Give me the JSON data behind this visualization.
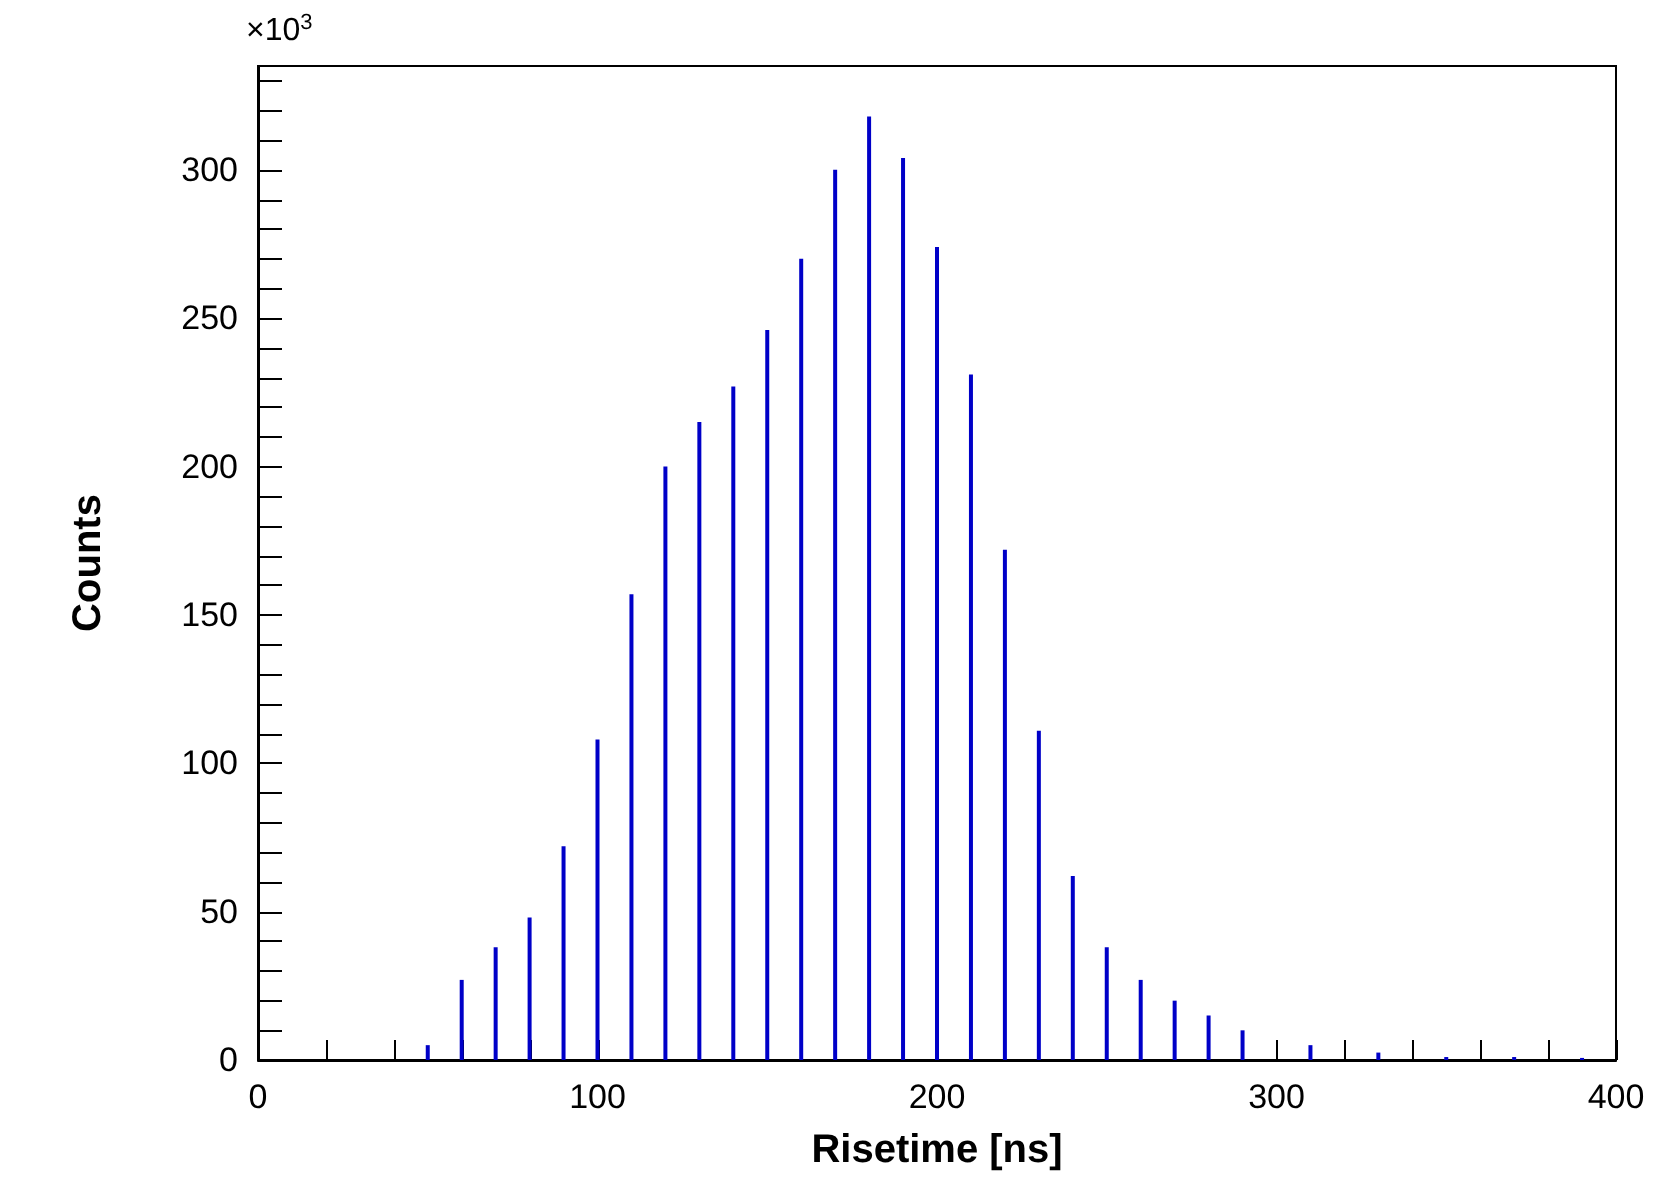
{
  "chart_data": {
    "type": "bar",
    "xlabel": "Risetime [ns]",
    "ylabel": "Counts",
    "annotations": [
      "×10$^{3}$"
    ],
    "x": [
      50,
      60,
      70,
      80,
      90,
      100,
      110,
      120,
      130,
      140,
      150,
      160,
      170,
      180,
      190,
      200,
      210,
      220,
      230,
      240,
      250,
      260,
      270,
      280,
      290,
      310,
      330,
      350,
      370,
      390
    ],
    "values": [
      5,
      27,
      38,
      48,
      72,
      108,
      157,
      200,
      215,
      227,
      246,
      270,
      300,
      318,
      304,
      274,
      231,
      172,
      111,
      62,
      38,
      27,
      20,
      15,
      10,
      5,
      2.5,
      1,
      1,
      0.7
    ],
    "color": "#0000c8",
    "xlim": [
      0,
      400
    ],
    "xticks": [
      0,
      {
        "value": 20,
        "label": null
      },
      {
        "value": 40,
        "label": null
      },
      {
        "value": 60,
        "label": null
      },
      {
        "value": 80,
        "label": null
      },
      100,
      {
        "value": 120,
        "label": null
      },
      {
        "value": 140,
        "label": null
      },
      {
        "value": 160,
        "label": null
      },
      {
        "value": 180,
        "label": null
      },
      200,
      {
        "value": 220,
        "label": null
      },
      {
        "value": 240,
        "label": null
      },
      {
        "value": 260,
        "label": null
      },
      {
        "value": 280,
        "label": null
      },
      300,
      {
        "value": 320,
        "label": null
      },
      {
        "value": 340,
        "label": null
      },
      {
        "value": 360,
        "label": null
      },
      {
        "value": 380,
        "label": null
      },
      400
    ],
    "ylim": [
      0,
      335
    ],
    "yticks": [
      0,
      {
        "value": 10,
        "label": null
      },
      {
        "value": 20,
        "label": null
      },
      {
        "value": 30,
        "label": null
      },
      {
        "value": 40,
        "label": null
      },
      50,
      {
        "value": 60,
        "label": null
      },
      {
        "value": 70,
        "label": null
      },
      {
        "value": 80,
        "label": null
      },
      {
        "value": 90,
        "label": null
      },
      100,
      {
        "value": 110,
        "label": null
      },
      {
        "value": 120,
        "label": null
      },
      {
        "value": 130,
        "label": null
      },
      {
        "value": 140,
        "label": null
      },
      150,
      {
        "value": 160,
        "label": null
      },
      {
        "value": 170,
        "label": null
      },
      {
        "value": 180,
        "label": null
      },
      {
        "value": 190,
        "label": null
      },
      200,
      {
        "value": 210,
        "label": null
      },
      {
        "value": 220,
        "label": null
      },
      {
        "value": 230,
        "label": null
      },
      {
        "value": 240,
        "label": null
      },
      250,
      {
        "value": 260,
        "label": null
      },
      {
        "value": 270,
        "label": null
      },
      {
        "value": 280,
        "label": null
      },
      {
        "value": 290,
        "label": null
      },
      300,
      {
        "value": 310,
        "label": null
      },
      {
        "value": 320,
        "label": null
      },
      {
        "value": 330,
        "label": null
      }
    ],
    "grid": false
  }
}
